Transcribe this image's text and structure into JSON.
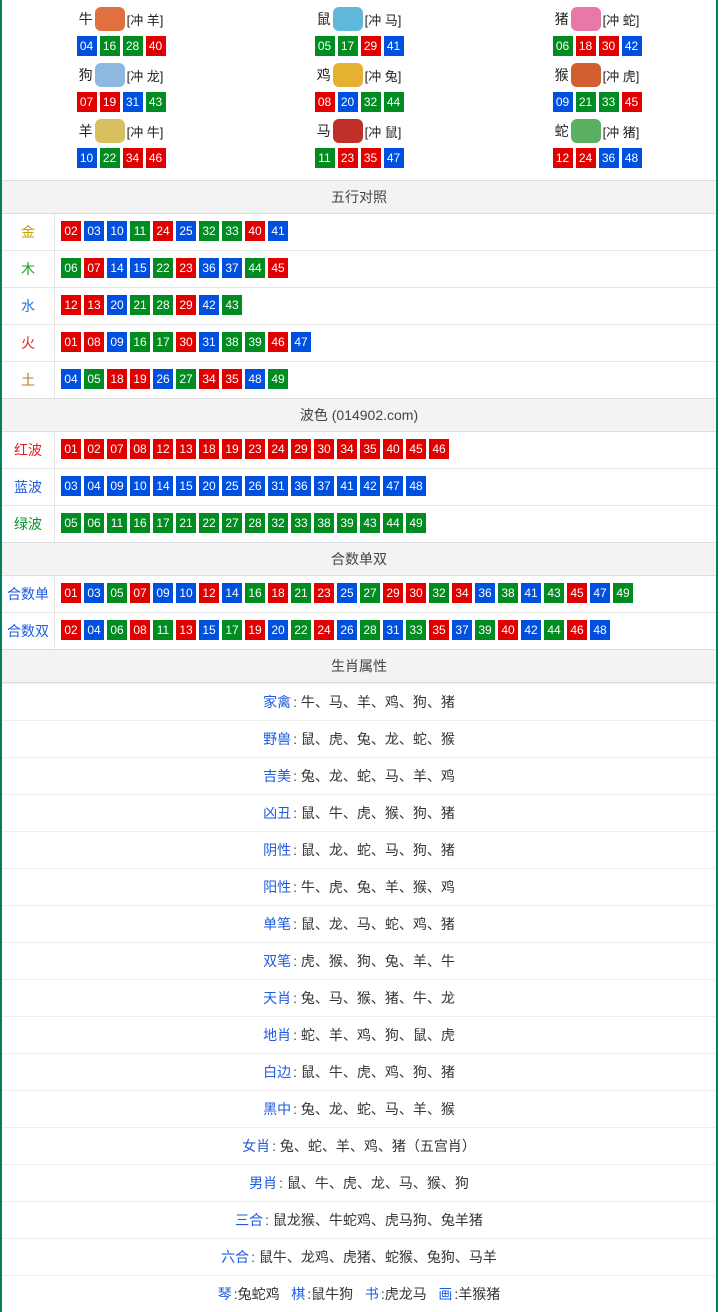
{
  "colors": {
    "red": "#e00000",
    "blue": "#0050e0",
    "green": "#008c20",
    "border": "#008060"
  },
  "num_colors": {
    "01": "r",
    "02": "r",
    "07": "r",
    "08": "r",
    "12": "r",
    "13": "r",
    "18": "r",
    "19": "r",
    "23": "r",
    "24": "r",
    "29": "r",
    "30": "r",
    "34": "r",
    "35": "r",
    "40": "r",
    "45": "r",
    "46": "r",
    "03": "b",
    "04": "b",
    "09": "b",
    "10": "b",
    "14": "b",
    "15": "b",
    "20": "b",
    "25": "b",
    "26": "b",
    "31": "b",
    "36": "b",
    "37": "b",
    "41": "b",
    "42": "b",
    "47": "b",
    "48": "b",
    "05": "g",
    "06": "g",
    "11": "g",
    "16": "g",
    "17": "g",
    "21": "g",
    "22": "g",
    "27": "g",
    "28": "g",
    "32": "g",
    "33": "g",
    "38": "g",
    "39": "g",
    "43": "g",
    "44": "g",
    "49": "g"
  },
  "zodiac_icon_colors": {
    "牛": "#e07040",
    "鼠": "#5fb8d8",
    "猪": "#e878a8",
    "狗": "#8fb8e0",
    "鸡": "#e6b030",
    "猴": "#d06030",
    "羊": "#d8c060",
    "马": "#c03028",
    "蛇": "#58b060"
  },
  "zodiac": [
    {
      "name": "牛",
      "clash": "[冲 羊]",
      "nums": [
        "04",
        "16",
        "28",
        "40"
      ]
    },
    {
      "name": "鼠",
      "clash": "[冲 马]",
      "nums": [
        "05",
        "17",
        "29",
        "41"
      ]
    },
    {
      "name": "猪",
      "clash": "[冲 蛇]",
      "nums": [
        "06",
        "18",
        "30",
        "42"
      ]
    },
    {
      "name": "狗",
      "clash": "[冲 龙]",
      "nums": [
        "07",
        "19",
        "31",
        "43"
      ]
    },
    {
      "name": "鸡",
      "clash": "[冲 兔]",
      "nums": [
        "08",
        "20",
        "32",
        "44"
      ]
    },
    {
      "name": "猴",
      "clash": "[冲 虎]",
      "nums": [
        "09",
        "21",
        "33",
        "45"
      ]
    },
    {
      "name": "羊",
      "clash": "[冲 牛]",
      "nums": [
        "10",
        "22",
        "34",
        "46"
      ]
    },
    {
      "name": "马",
      "clash": "[冲 鼠]",
      "nums": [
        "11",
        "23",
        "35",
        "47"
      ]
    },
    {
      "name": "蛇",
      "clash": "[冲 猪]",
      "nums": [
        "12",
        "24",
        "36",
        "48"
      ]
    }
  ],
  "sections": {
    "wuxing_title": "五行对照",
    "wuxing": [
      {
        "label": "金",
        "cls": "c-jin",
        "nums": [
          "02",
          "03",
          "10",
          "11",
          "24",
          "25",
          "32",
          "33",
          "40",
          "41"
        ]
      },
      {
        "label": "木",
        "cls": "c-mu",
        "nums": [
          "06",
          "07",
          "14",
          "15",
          "22",
          "23",
          "36",
          "37",
          "44",
          "45"
        ]
      },
      {
        "label": "水",
        "cls": "c-shui",
        "nums": [
          "12",
          "13",
          "20",
          "21",
          "28",
          "29",
          "42",
          "43"
        ]
      },
      {
        "label": "火",
        "cls": "c-huo",
        "nums": [
          "01",
          "08",
          "09",
          "16",
          "17",
          "30",
          "31",
          "38",
          "39",
          "46",
          "47"
        ]
      },
      {
        "label": "土",
        "cls": "c-tu",
        "nums": [
          "04",
          "05",
          "18",
          "19",
          "26",
          "27",
          "34",
          "35",
          "48",
          "49"
        ]
      }
    ],
    "bose_title": "波色   (014902.com)",
    "bose": [
      {
        "label": "红波",
        "cls": "c-hong",
        "nums": [
          "01",
          "02",
          "07",
          "08",
          "12",
          "13",
          "18",
          "19",
          "23",
          "24",
          "29",
          "30",
          "34",
          "35",
          "40",
          "45",
          "46"
        ]
      },
      {
        "label": "蓝波",
        "cls": "c-lan",
        "nums": [
          "03",
          "04",
          "09",
          "10",
          "14",
          "15",
          "20",
          "25",
          "26",
          "31",
          "36",
          "37",
          "41",
          "42",
          "47",
          "48"
        ]
      },
      {
        "label": "绿波",
        "cls": "c-lv",
        "nums": [
          "05",
          "06",
          "11",
          "16",
          "17",
          "21",
          "22",
          "27",
          "28",
          "32",
          "33",
          "38",
          "39",
          "43",
          "44",
          "49"
        ]
      }
    ],
    "heshu_title": "合数单双",
    "heshu": [
      {
        "label": "合数单",
        "cls": "c-hesd",
        "nums": [
          "01",
          "03",
          "05",
          "07",
          "09",
          "10",
          "12",
          "14",
          "16",
          "18",
          "21",
          "23",
          "25",
          "27",
          "29",
          "30",
          "32",
          "34",
          "36",
          "38",
          "41",
          "43",
          "45",
          "47",
          "49"
        ]
      },
      {
        "label": "合数双",
        "cls": "c-hess",
        "nums": [
          "02",
          "04",
          "06",
          "08",
          "11",
          "13",
          "15",
          "17",
          "19",
          "20",
          "22",
          "24",
          "26",
          "28",
          "31",
          "33",
          "35",
          "37",
          "39",
          "40",
          "42",
          "44",
          "46",
          "48"
        ]
      }
    ],
    "attr_title": "生肖属性",
    "attrs": [
      {
        "key": "家禽",
        "val": "牛、马、羊、鸡、狗、猪"
      },
      {
        "key": "野兽",
        "val": "鼠、虎、兔、龙、蛇、猴"
      },
      {
        "key": "吉美",
        "val": "兔、龙、蛇、马、羊、鸡"
      },
      {
        "key": "凶丑",
        "val": "鼠、牛、虎、猴、狗、猪"
      },
      {
        "key": "阴性",
        "val": "鼠、龙、蛇、马、狗、猪"
      },
      {
        "key": "阳性",
        "val": "牛、虎、兔、羊、猴、鸡"
      },
      {
        "key": "单笔",
        "val": "鼠、龙、马、蛇、鸡、猪"
      },
      {
        "key": "双笔",
        "val": "虎、猴、狗、兔、羊、牛"
      },
      {
        "key": "天肖",
        "val": "兔、马、猴、猪、牛、龙"
      },
      {
        "key": "地肖",
        "val": "蛇、羊、鸡、狗、鼠、虎"
      },
      {
        "key": "白边",
        "val": "鼠、牛、虎、鸡、狗、猪"
      },
      {
        "key": "黑中",
        "val": "兔、龙、蛇、马、羊、猴"
      },
      {
        "key": "女肖",
        "val": "兔、蛇、羊、鸡、猪（五宫肖）"
      },
      {
        "key": "男肖",
        "val": "鼠、牛、虎、龙、马、猴、狗"
      },
      {
        "key": "三合",
        "val": "鼠龙猴、牛蛇鸡、虎马狗、兔羊猪"
      },
      {
        "key": "六合",
        "val": "鼠牛、龙鸡、虎猪、蛇猴、兔狗、马羊"
      }
    ],
    "bottom_line": {
      "pairs": [
        {
          "key": "琴",
          "val": "兔蛇鸡"
        },
        {
          "key": "棋",
          "val": "鼠牛狗"
        },
        {
          "key": "书",
          "val": "虎龙马"
        },
        {
          "key": "画",
          "val": "羊猴猪"
        }
      ]
    }
  }
}
